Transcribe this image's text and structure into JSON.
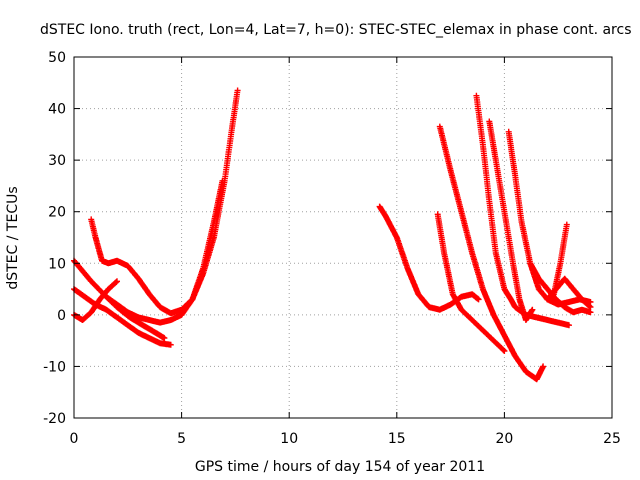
{
  "chart_data": {
    "type": "scatter",
    "title": "dSTEC Iono. truth (rect, Lon=4, Lat=7, h=0): STEC-STEC_elemax in phase cont. arcs",
    "xlabel": "GPS time / hours of day 154 of year 2011",
    "ylabel": "dSTEC  / TECUs",
    "xlim": [
      0,
      25
    ],
    "ylim": [
      -20,
      50
    ],
    "xticks": [
      0,
      5,
      10,
      15,
      20,
      25
    ],
    "yticks": [
      -20,
      -10,
      0,
      10,
      20,
      30,
      40,
      50
    ],
    "xtick_labels": [
      "0",
      "5",
      "10",
      "15",
      "20",
      "25"
    ],
    "ytick_labels": [
      "-20",
      "-10",
      "0",
      "10",
      "20",
      "30",
      "40",
      "50"
    ],
    "grid": true,
    "marker": "plus",
    "color": "#ff0000",
    "series": [
      {
        "x": [
          0,
          0.3,
          0.8,
          1.5,
          2.0,
          2.6,
          3.2,
          3.8,
          4.2
        ],
        "y": [
          10.5,
          9,
          6.5,
          3.5,
          1.5,
          -0.5,
          -2,
          -3.5,
          -4.5
        ]
      },
      {
        "x": [
          0,
          0.5,
          1.0,
          1.5,
          2.0,
          2.5,
          3.0,
          3.5,
          4.0,
          4.5
        ],
        "y": [
          5,
          3.5,
          2,
          1,
          -0.5,
          -2,
          -3.5,
          -4.5,
          -5.5,
          -5.8
        ]
      },
      {
        "x": [
          0,
          0.4,
          0.8,
          1.2,
          1.6,
          2.0
        ],
        "y": [
          0,
          -1,
          0.5,
          3,
          5,
          6.5
        ]
      },
      {
        "x": [
          0.8,
          1.0,
          1.3,
          1.6,
          2.0,
          2.5,
          3.0,
          3.5,
          4.0,
          4.5,
          5.0,
          5.5,
          6.0,
          6.5,
          7.0,
          7.3,
          7.6
        ],
        "y": [
          18.5,
          15,
          10.5,
          10,
          10.5,
          9.5,
          7,
          4,
          1.5,
          0.3,
          1,
          3,
          8,
          15,
          26,
          35,
          43.5
        ]
      },
      {
        "x": [
          1.5,
          2.0,
          2.5,
          3.0,
          3.5,
          4.0,
          4.5,
          5.0,
          5.5,
          6.0,
          6.5,
          6.9
        ],
        "y": [
          3.5,
          2,
          0.5,
          -0.5,
          -1,
          -1.5,
          -1,
          0,
          3,
          9,
          18,
          26
        ]
      },
      {
        "x": [
          14.2,
          14.5,
          15.0,
          15.5,
          16.0,
          16.5,
          17.0,
          17.5,
          18.0,
          18.5,
          18.8
        ],
        "y": [
          21,
          19,
          15,
          9,
          4,
          1.5,
          1.0,
          2,
          3.5,
          4,
          3
        ]
      },
      {
        "x": [
          16.9,
          17.2,
          17.6,
          18.0,
          18.5,
          19.0,
          19.5,
          20.0
        ],
        "y": [
          19.5,
          12,
          4,
          1,
          -1,
          -3,
          -5,
          -7
        ]
      },
      {
        "x": [
          17.0,
          17.5,
          18.0,
          18.5,
          19.0,
          19.5,
          20.0,
          20.5,
          21.0,
          21.5,
          21.8
        ],
        "y": [
          36.5,
          28,
          20,
          12,
          5,
          0,
          -4,
          -8,
          -11,
          -12.5,
          -10
        ]
      },
      {
        "x": [
          18.7,
          19.0,
          19.3,
          19.6,
          20.0,
          20.3,
          20.5,
          21.0,
          21.5,
          22.0,
          22.5,
          23.0
        ],
        "y": [
          42.5,
          33,
          22,
          12,
          5,
          3,
          1.5,
          0,
          -0.5,
          -1,
          -1.5,
          -2
        ]
      },
      {
        "x": [
          19.3,
          19.6,
          20.0,
          20.4,
          20.7,
          21.0,
          21.3
        ],
        "y": [
          37.5,
          30,
          20,
          10,
          3,
          -1,
          1
        ]
      },
      {
        "x": [
          20.2,
          20.5,
          20.8,
          21.2,
          21.6,
          22.0,
          22.5,
          23.0,
          23.5,
          24.0
        ],
        "y": [
          35.5,
          27,
          18,
          10,
          5,
          3,
          2,
          2.5,
          3,
          2.5
        ]
      },
      {
        "x": [
          21.2,
          21.6,
          22.0,
          22.4,
          22.8,
          23.2,
          23.6,
          24.0
        ],
        "y": [
          10,
          7,
          5,
          3,
          1.5,
          0.5,
          1,
          0.5
        ]
      },
      {
        "x": [
          22.9,
          22.6,
          22.3,
          22.0,
          22.4,
          22.8,
          23.2,
          23.6,
          24.0
        ],
        "y": [
          17.5,
          10,
          4,
          3,
          5,
          7,
          5,
          3,
          1.5
        ]
      }
    ]
  }
}
